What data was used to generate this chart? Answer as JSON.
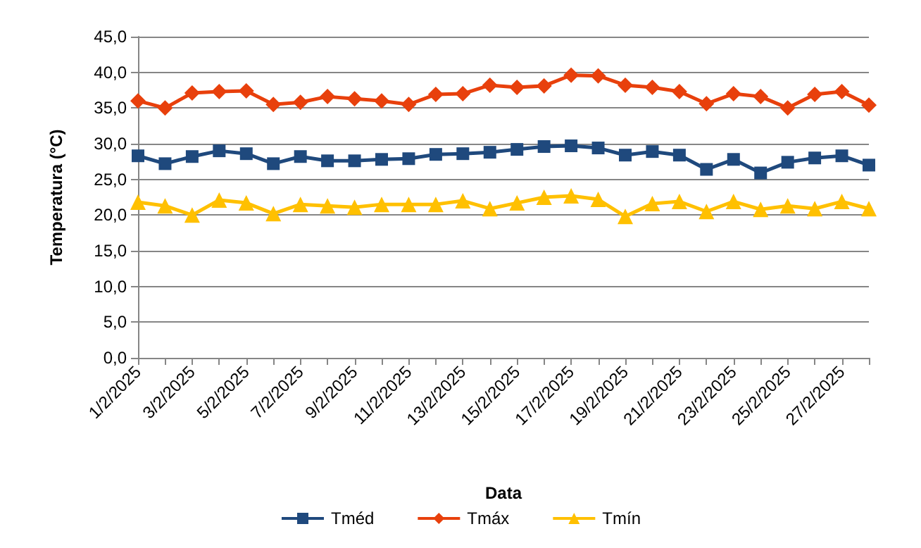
{
  "chart_data": {
    "type": "line",
    "xlabel": "Data",
    "ylabel": "Temperatura (°C)",
    "categories": [
      "1/2/2025",
      null,
      "3/2/2025",
      null,
      "5/2/2025",
      null,
      "7/2/2025",
      null,
      "9/2/2025",
      null,
      "11/2/2025",
      null,
      "13/2/2025",
      null,
      "15/2/2025",
      null,
      "17/2/2025",
      null,
      "19/2/2025",
      null,
      "21/2/2025",
      null,
      "23/2/2025",
      null,
      "25/2/2025",
      null,
      "27/2/2025",
      null
    ],
    "series": [
      {
        "name": "Tméd",
        "color": "#1f497d",
        "marker": "square",
        "values": [
          28.3,
          27.2,
          28.2,
          29.0,
          28.6,
          27.2,
          28.2,
          27.6,
          27.6,
          27.8,
          27.9,
          28.5,
          28.6,
          28.8,
          29.2,
          29.6,
          29.7,
          29.4,
          28.4,
          28.9,
          28.4,
          26.4,
          27.8,
          25.9,
          27.4,
          28.0,
          28.3,
          27.0
        ]
      },
      {
        "name": "Tmáx",
        "color": "#e8400c",
        "marker": "diamond",
        "values": [
          36.0,
          35.0,
          37.1,
          37.3,
          37.4,
          35.5,
          35.8,
          36.6,
          36.3,
          36.0,
          35.5,
          36.9,
          37.0,
          38.2,
          37.9,
          38.1,
          39.6,
          39.5,
          38.2,
          37.9,
          37.3,
          35.6,
          37.0,
          36.6,
          35.0,
          36.9,
          37.3,
          35.4
        ]
      },
      {
        "name": "Tmín",
        "color": "#ffc000",
        "marker": "triangle",
        "values": [
          21.8,
          21.3,
          20.0,
          22.1,
          21.7,
          20.2,
          21.5,
          21.3,
          21.1,
          21.5,
          21.5,
          21.5,
          22.0,
          20.9,
          21.7,
          22.5,
          22.7,
          22.2,
          19.8,
          21.6,
          21.9,
          20.5,
          21.9,
          20.8,
          21.3,
          20.9,
          21.9,
          20.9
        ]
      }
    ],
    "ylim": [
      0,
      45
    ],
    "yticks": [
      {
        "value": 0,
        "label": "0,0"
      },
      {
        "value": 5,
        "label": "5,0"
      },
      {
        "value": 10,
        "label": "10,0"
      },
      {
        "value": 15,
        "label": "15,0"
      },
      {
        "value": 20,
        "label": "20,0"
      },
      {
        "value": 25,
        "label": "25,0"
      },
      {
        "value": 30,
        "label": "30,0"
      },
      {
        "value": 35,
        "label": "35,0"
      },
      {
        "value": 40,
        "label": "40,0"
      },
      {
        "value": 45,
        "label": "45,0"
      }
    ],
    "grid": "y",
    "legend": "bottom"
  }
}
